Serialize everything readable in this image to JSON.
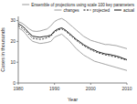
{
  "chart_data": {
    "type": "line",
    "x": [
      1980,
      1981,
      1982,
      1983,
      1984,
      1985,
      1986,
      1987,
      1988,
      1989,
      1990,
      1991,
      1992,
      1993,
      1994,
      1995,
      1996,
      1997,
      1998,
      1999,
      2000,
      2001,
      2002,
      2003,
      2004,
      2005,
      2006,
      2007,
      2008,
      2009,
      2010
    ],
    "series": [
      {
        "name": "Ensemble of projections using scale 100 key parameters",
        "color": "#999999",
        "line_style": "solid",
        "values": [
          29.5,
          28.8,
          27.5,
          26.0,
          25.0,
          24.8,
          25.0,
          25.5,
          26.0,
          27.5,
          29.5,
          30.5,
          31.0,
          30.0,
          28.5,
          27.0,
          25.5,
          24.0,
          22.5,
          21.5,
          20.5,
          20.0,
          19.5,
          19.0,
          18.5,
          18.5,
          18.2,
          18.0,
          17.5,
          17.0,
          16.5
        ]
      },
      {
        "name": "changes",
        "color": "#999999",
        "line_style": "solid",
        "values": [
          26.5,
          25.5,
          23.8,
          21.5,
          20.0,
          19.5,
          19.0,
          19.2,
          19.5,
          20.0,
          22.0,
          22.8,
          23.5,
          22.0,
          20.5,
          18.5,
          16.5,
          15.0,
          13.5,
          12.5,
          11.5,
          10.5,
          10.0,
          9.5,
          9.0,
          8.5,
          8.0,
          7.5,
          7.0,
          6.5,
          6.0
        ]
      },
      {
        "name": "projected",
        "color": "#111111",
        "line_style": "dashed",
        "values": [
          27.5,
          26.5,
          25.0,
          23.2,
          21.5,
          21.2,
          21.0,
          21.2,
          21.8,
          22.5,
          24.5,
          25.5,
          26.0,
          25.0,
          23.5,
          22.0,
          20.5,
          19.2,
          18.0,
          17.0,
          16.0,
          15.2,
          14.5,
          14.0,
          13.5,
          13.2,
          12.8,
          12.5,
          12.0,
          11.5,
          11.0
        ]
      },
      {
        "name": "actual",
        "color": "#111111",
        "line_style": "solid",
        "values": [
          28.5,
          27.5,
          26.0,
          24.0,
          22.5,
          22.2,
          22.0,
          22.3,
          22.5,
          23.0,
          25.0,
          26.0,
          26.5,
          25.5,
          24.0,
          22.5,
          21.0,
          19.8,
          18.5,
          17.5,
          16.5,
          15.8,
          15.0,
          14.5,
          14.0,
          13.8,
          13.4,
          13.0,
          12.5,
          11.8,
          11.2
        ]
      }
    ],
    "xlabel": "Year",
    "ylabel": "Cases in thousands",
    "xlim": [
      1980,
      2010
    ],
    "ylim": [
      0,
      32
    ],
    "xticks": [
      1980,
      1990,
      2000,
      2010
    ],
    "yticks": [
      0,
      10,
      20,
      30
    ],
    "legend": "upper right"
  }
}
